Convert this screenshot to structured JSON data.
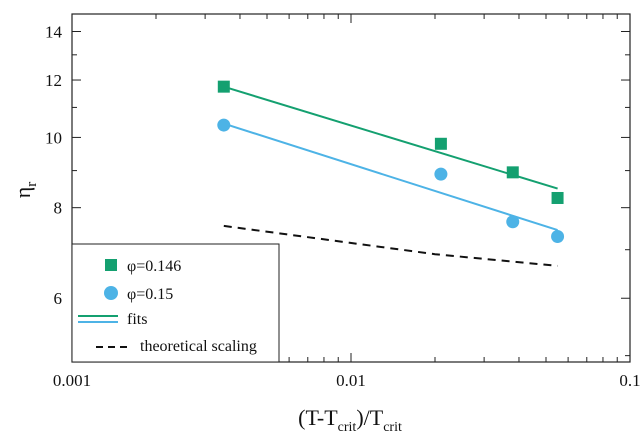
{
  "chart_data": {
    "type": "scatter",
    "xscale": "log",
    "yscale": "log",
    "xlim": [
      0.001,
      0.1
    ],
    "ylim": [
      4.9,
      14.8
    ],
    "xticks": [
      0.001,
      0.01,
      0.1
    ],
    "xtick_labels": [
      "0.001",
      "0.01",
      "0.1"
    ],
    "yticks": [
      6,
      8,
      10,
      12,
      14
    ],
    "ytick_labels": [
      "6",
      "8",
      "10",
      "12",
      "14"
    ],
    "xlabel": {
      "base": "(T-T",
      "sub1": "crit",
      "mid": ")/T",
      "sub2": "crit"
    },
    "ylabel": {
      "base": "η",
      "sub": "r"
    },
    "legend_position": "bottom-left",
    "series": [
      {
        "name": "φ=0.146",
        "kind": "markers",
        "marker": "square",
        "color": "#14a070",
        "x": [
          0.0035,
          0.021,
          0.038,
          0.055
        ],
        "y": [
          11.75,
          9.8,
          8.95,
          8.25
        ]
      },
      {
        "name": "φ=0.15",
        "kind": "markers",
        "marker": "circle",
        "color": "#4db3e6",
        "x": [
          0.0035,
          0.021,
          0.038,
          0.055
        ],
        "y": [
          10.4,
          8.9,
          7.65,
          7.3
        ]
      },
      {
        "name": "fits",
        "kind": "line",
        "style": "solid",
        "color": "#14a070",
        "x": [
          0.0035,
          0.055
        ],
        "y": [
          11.75,
          8.5
        ]
      },
      {
        "name": "",
        "kind": "line",
        "style": "solid",
        "color": "#4db3e6",
        "x": [
          0.0035,
          0.055
        ],
        "y": [
          10.45,
          7.45
        ]
      },
      {
        "name": "theoretical scaling",
        "kind": "line",
        "style": "dashed",
        "color": "#111111",
        "x": [
          0.0035,
          0.02,
          0.055
        ],
        "y": [
          7.55,
          6.9,
          6.65
        ]
      }
    ]
  }
}
